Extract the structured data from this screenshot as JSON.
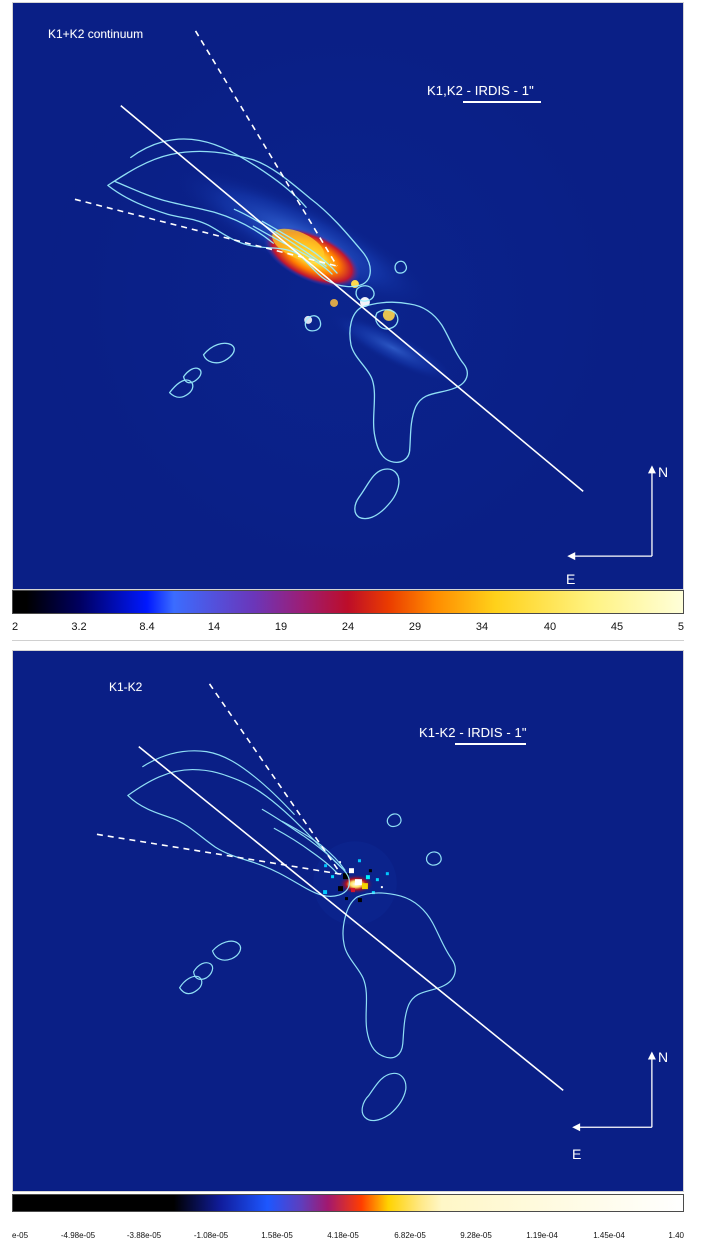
{
  "panels": {
    "top": {
      "label": "K1+K2 continuum",
      "title": "K1,K2 - IRDIS - 1\"",
      "compass": {
        "north": "N",
        "east": "E"
      }
    },
    "bottom": {
      "label": "K1-K2",
      "title": "K1-K2 - IRDIS - 1\"",
      "compass": {
        "north": "N",
        "east": "E"
      }
    }
  },
  "colorbars": {
    "top": {
      "ticks": [
        "2",
        "3.2",
        "8.4",
        "14",
        "19",
        "24",
        "29",
        "34",
        "40",
        "45",
        "5"
      ]
    },
    "bottom": {
      "ticks": [
        "e-05",
        "-4.98e-05",
        "-3.88e-05",
        "-1.08e-05",
        "1.58e-05",
        "4.18e-05",
        "6.82e-05",
        "9.28e-05",
        "1.19e-04",
        "1.45e-04",
        "1.40"
      ]
    }
  },
  "colors": {
    "background_blue": "#0a1f86",
    "contour_cyan": "#9cf0ff",
    "white": "#ffffff",
    "hot_yellow": "#ffe04a",
    "hot_orange": "#ff7b00",
    "hot_red": "#d70021"
  },
  "icons": {
    "north": "north-arrow-icon",
    "east": "east-arrow-icon"
  }
}
